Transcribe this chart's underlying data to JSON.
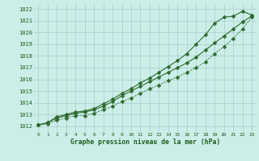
{
  "x": [
    0,
    1,
    2,
    3,
    4,
    5,
    6,
    7,
    8,
    9,
    10,
    11,
    12,
    13,
    14,
    15,
    16,
    17,
    18,
    19,
    20,
    21,
    22,
    23
  ],
  "line_upper": [
    1012.1,
    1012.3,
    1012.8,
    1013.0,
    1013.2,
    1013.3,
    1013.5,
    1013.9,
    1014.3,
    1014.8,
    1015.2,
    1015.7,
    1016.1,
    1016.6,
    1017.1,
    1017.6,
    1018.2,
    1019.0,
    1019.8,
    1020.8,
    1021.3,
    1021.4,
    1021.8,
    1021.5
  ],
  "line_mid": [
    1012.1,
    1012.3,
    1012.7,
    1012.9,
    1013.1,
    1013.2,
    1013.4,
    1013.7,
    1014.1,
    1014.6,
    1015.0,
    1015.4,
    1015.8,
    1016.2,
    1016.6,
    1017.0,
    1017.4,
    1017.9,
    1018.5,
    1019.1,
    1019.7,
    1020.3,
    1020.9,
    1021.4
  ],
  "line_lower": [
    1012.1,
    1012.2,
    1012.5,
    1012.7,
    1012.9,
    1012.9,
    1013.1,
    1013.4,
    1013.7,
    1014.1,
    1014.4,
    1014.8,
    1015.2,
    1015.5,
    1015.9,
    1016.2,
    1016.6,
    1017.0,
    1017.5,
    1018.2,
    1018.8,
    1019.5,
    1020.3,
    1021.3
  ],
  "ylim": [
    1011.5,
    1022.5
  ],
  "yticks": [
    1012,
    1013,
    1014,
    1015,
    1016,
    1017,
    1018,
    1019,
    1020,
    1021,
    1022
  ],
  "xtick_labels": [
    "0",
    "1",
    "2",
    "3",
    "4",
    "5",
    "6",
    "7",
    "8",
    "9",
    "10",
    "11",
    "12",
    "13",
    "14",
    "15",
    "16",
    "17",
    "18",
    "19",
    "20",
    "21",
    "22",
    "23"
  ],
  "line_color": "#2d6a2d",
  "bg_color": "#cceee8",
  "grid_color": "#aacccc",
  "xlabel": "Graphe pression niveau de la mer (hPa)",
  "xlabel_color": "#1a5c1a",
  "tick_color": "#1a5c1a",
  "markersize": 2.5,
  "linewidth": 0.8
}
